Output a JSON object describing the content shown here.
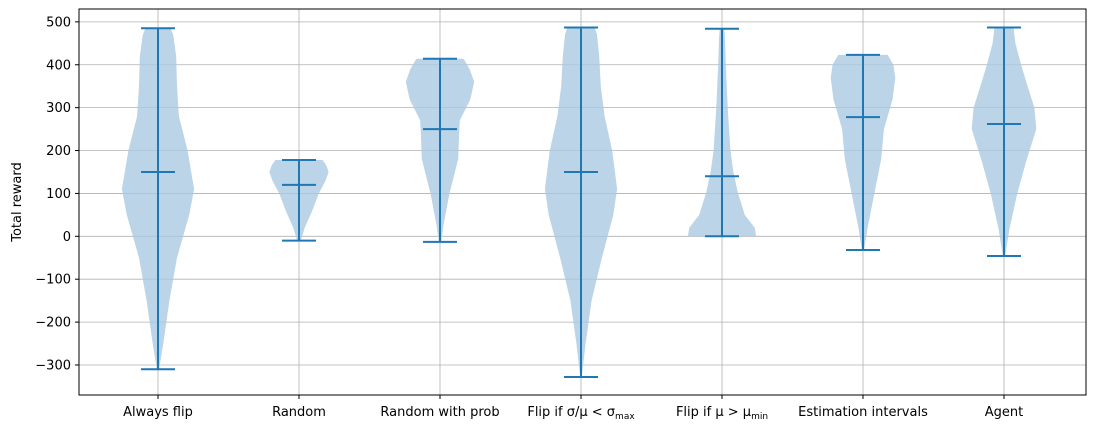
{
  "chart_data": {
    "type": "violin",
    "ylabel": "Total reward",
    "xlabel": "",
    "title": "",
    "ylim": [
      -370,
      530
    ],
    "yticks": [
      -300,
      -200,
      -100,
      0,
      100,
      200,
      300,
      400,
      500
    ],
    "ytick_labels": [
      "−300",
      "−200",
      "−100",
      "0",
      "100",
      "200",
      "300",
      "400",
      "500"
    ],
    "grid": true,
    "colors": {
      "body": "#a8c8e2",
      "line": "#1f77b4",
      "grid": "#b0b0b0"
    },
    "categories": [
      {
        "label": "Always flip",
        "label_parts": null
      },
      {
        "label": "Random",
        "label_parts": null
      },
      {
        "label": "Random with prob",
        "label_parts": null
      },
      {
        "label": "Flip if σ/μ < σmax",
        "label_parts": {
          "base": "Flip if σ/μ < σ",
          "sub": "max"
        }
      },
      {
        "label": "Flip if μ > μmin",
        "label_parts": {
          "base": "Flip if μ > μ",
          "sub": "min"
        }
      },
      {
        "label": "Estimation intervals",
        "label_parts": null
      },
      {
        "label": "Agent",
        "label_parts": null
      }
    ],
    "series": [
      {
        "min": -310,
        "mean": 150,
        "max": 485,
        "density": [
          [
            -310,
            0.03
          ],
          [
            -250,
            0.14
          ],
          [
            -150,
            0.3
          ],
          [
            -50,
            0.5
          ],
          [
            50,
            0.82
          ],
          [
            110,
            0.95
          ],
          [
            200,
            0.78
          ],
          [
            280,
            0.55
          ],
          [
            350,
            0.5
          ],
          [
            420,
            0.48
          ],
          [
            470,
            0.4
          ],
          [
            485,
            0.33
          ]
        ]
      },
      {
        "min": -10,
        "mean": 120,
        "max": 178,
        "density": [
          [
            -10,
            0.05
          ],
          [
            20,
            0.15
          ],
          [
            60,
            0.35
          ],
          [
            100,
            0.52
          ],
          [
            130,
            0.7
          ],
          [
            150,
            0.78
          ],
          [
            165,
            0.72
          ],
          [
            178,
            0.62
          ]
        ]
      },
      {
        "min": -13,
        "mean": 250,
        "max": 414,
        "density": [
          [
            -13,
            0.03
          ],
          [
            30,
            0.1
          ],
          [
            100,
            0.25
          ],
          [
            180,
            0.48
          ],
          [
            230,
            0.5
          ],
          [
            270,
            0.52
          ],
          [
            320,
            0.8
          ],
          [
            360,
            0.9
          ],
          [
            390,
            0.78
          ],
          [
            414,
            0.62
          ]
        ]
      },
      {
        "min": -328,
        "mean": 150,
        "max": 487,
        "density": [
          [
            -328,
            0.02
          ],
          [
            -250,
            0.12
          ],
          [
            -150,
            0.28
          ],
          [
            -50,
            0.55
          ],
          [
            50,
            0.85
          ],
          [
            110,
            0.95
          ],
          [
            200,
            0.82
          ],
          [
            280,
            0.62
          ],
          [
            350,
            0.52
          ],
          [
            420,
            0.48
          ],
          [
            470,
            0.42
          ],
          [
            487,
            0.36
          ]
        ]
      },
      {
        "min": 0,
        "mean": 140,
        "max": 484,
        "density": [
          [
            0,
            0.9
          ],
          [
            20,
            0.86
          ],
          [
            50,
            0.6
          ],
          [
            100,
            0.42
          ],
          [
            150,
            0.3
          ],
          [
            200,
            0.22
          ],
          [
            300,
            0.15
          ],
          [
            400,
            0.1
          ],
          [
            460,
            0.08
          ],
          [
            484,
            0.06
          ]
        ]
      },
      {
        "min": -32,
        "mean": 278,
        "max": 423,
        "density": [
          [
            -32,
            0.03
          ],
          [
            20,
            0.12
          ],
          [
            100,
            0.3
          ],
          [
            180,
            0.48
          ],
          [
            250,
            0.55
          ],
          [
            320,
            0.78
          ],
          [
            370,
            0.85
          ],
          [
            400,
            0.8
          ],
          [
            423,
            0.65
          ]
        ]
      },
      {
        "min": -46,
        "mean": 262,
        "max": 487,
        "density": [
          [
            -46,
            0.03
          ],
          [
            20,
            0.15
          ],
          [
            100,
            0.35
          ],
          [
            180,
            0.6
          ],
          [
            250,
            0.85
          ],
          [
            300,
            0.8
          ],
          [
            350,
            0.62
          ],
          [
            400,
            0.45
          ],
          [
            450,
            0.3
          ],
          [
            487,
            0.25
          ]
        ]
      }
    ]
  }
}
